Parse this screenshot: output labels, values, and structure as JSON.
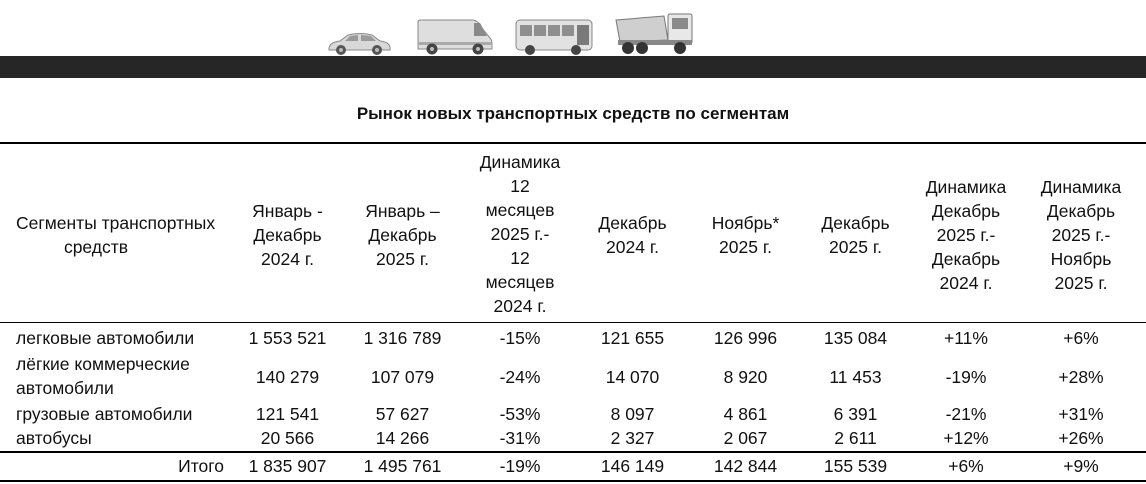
{
  "header_icons": [
    "car-icon",
    "van-icon",
    "bus-icon",
    "dump-truck-icon"
  ],
  "title": "Рынок новых транспортных средств по сегментам",
  "columns": {
    "segment": [
      "Сегменты транспортных",
      "средств"
    ],
    "jan_dec_2024": [
      "Январь -",
      "Декабрь",
      "2024 г."
    ],
    "jan_dec_2025": [
      "Январь –",
      "Декабрь",
      "2025 г."
    ],
    "dyn_12m": [
      "Динамика",
      "12",
      "месяцев",
      "2025 г.-",
      "12",
      "месяцев",
      "2024 г."
    ],
    "dec_2024": [
      "Декабрь",
      "2024 г."
    ],
    "nov_2025": [
      "Ноябрь*",
      "2025 г."
    ],
    "dec_2025": [
      "Декабрь",
      "2025 г."
    ],
    "dyn_dec_dec": [
      "Динамика",
      "Декабрь",
      "2025 г.-",
      "Декабрь",
      "2024 г."
    ],
    "dyn_dec_nov": [
      "Динамика",
      "Декабрь",
      "2025 г.-",
      "Ноябрь",
      "2025 г."
    ]
  },
  "rows": [
    {
      "segment": [
        "легковые автомобили"
      ],
      "jan_dec_2024": "1 553 521",
      "jan_dec_2025": "1 316 789",
      "dyn_12m": "-15%",
      "dec_2024": "121 655",
      "nov_2025": "126 996",
      "dec_2025": "135 084",
      "dyn_dec_dec": "+11%",
      "dyn_dec_nov": "+6%"
    },
    {
      "segment": [
        "лёгкие коммерческие",
        "автомобили"
      ],
      "jan_dec_2024": "140 279",
      "jan_dec_2025": "107 079",
      "dyn_12m": "-24%",
      "dec_2024": "14 070",
      "nov_2025": "8 920",
      "dec_2025": "11 453",
      "dyn_dec_dec": "-19%",
      "dyn_dec_nov": "+28%"
    },
    {
      "segment": [
        "грузовые автомобили"
      ],
      "jan_dec_2024": "121 541",
      "jan_dec_2025": "57 627",
      "dyn_12m": "-53%",
      "dec_2024": "8 097",
      "nov_2025": "4 861",
      "dec_2025": "6 391",
      "dyn_dec_dec": "-21%",
      "dyn_dec_nov": "+31%"
    },
    {
      "segment": [
        "автобусы"
      ],
      "jan_dec_2024": "20 566",
      "jan_dec_2025": "14 266",
      "dyn_12m": "-31%",
      "dec_2024": "2 327",
      "nov_2025": "2 067",
      "dec_2025": "2 611",
      "dyn_dec_dec": "+12%",
      "dyn_dec_nov": "+26%"
    }
  ],
  "total": {
    "label": "Итого",
    "jan_dec_2024": "1 835 907",
    "jan_dec_2025": "1 495 761",
    "dyn_12m": "-19%",
    "dec_2024": "146 149",
    "nov_2025": "142 844",
    "dec_2025": "155 539",
    "dyn_dec_dec": "+6%",
    "dyn_dec_nov": "+9%"
  }
}
